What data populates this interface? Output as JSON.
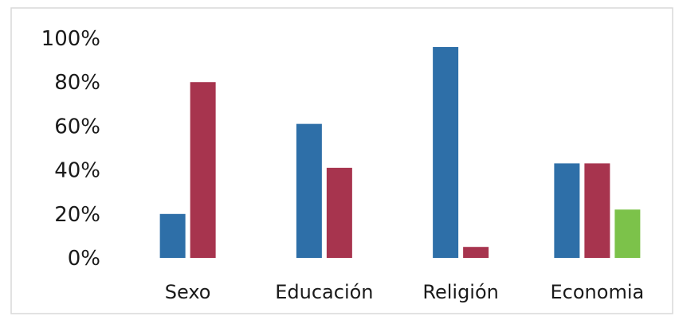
{
  "chart_data": {
    "type": "bar",
    "title": "",
    "xlabel": "",
    "ylabel": "",
    "categories": [
      "Sexo",
      "Educación",
      "Religión",
      "Economia"
    ],
    "series": [
      {
        "values": [
          20,
          61,
          96,
          43
        ],
        "color": "#2e6fa8"
      },
      {
        "values": [
          80,
          41,
          5,
          43
        ],
        "color": "#a7344e"
      },
      {
        "values": [
          null,
          null,
          null,
          22
        ],
        "color": "#7cc24a"
      }
    ],
    "ylim": [
      0,
      100
    ],
    "yticks": [
      0,
      20,
      40,
      60,
      80,
      100
    ],
    "ytick_labels": [
      "0%",
      "20%",
      "40%",
      "60%",
      "80%",
      "100%"
    ],
    "grid": false,
    "legend": "none"
  }
}
